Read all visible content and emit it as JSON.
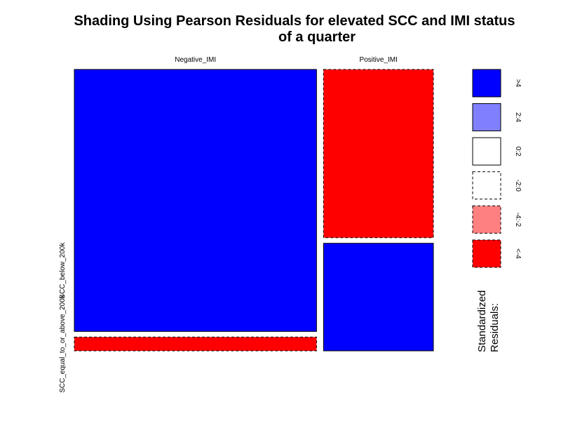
{
  "title": {
    "line1": "Shading Using Pearson Residuals for elevated SCC and IMI status",
    "line2": "of a quarter"
  },
  "chart_data": {
    "type": "mosaic",
    "title": "Shading Using Pearson Residuals for elevated SCC and IMI status of a quarter",
    "columns": [
      {
        "label": "Negative_IMI",
        "proportion": 0.688
      },
      {
        "label": "Positive_IMI",
        "proportion": 0.312
      }
    ],
    "rows": [
      "SCC_below_200k",
      "SCC_equal_to_or_above_200k"
    ],
    "cells": [
      {
        "column": "Negative_IMI",
        "row": "SCC_below_200k",
        "row_proportion": 0.95,
        "residual_bin": ">4",
        "fill": "#0000ff",
        "dashed": false
      },
      {
        "column": "Negative_IMI",
        "row": "SCC_equal_to_or_above_200k",
        "row_proportion": 0.05,
        "residual_bin": "<-4",
        "fill": "#ff0000",
        "dashed": true
      },
      {
        "column": "Positive_IMI",
        "row": "SCC_below_200k",
        "row_proportion": 0.61,
        "residual_bin": "<-4",
        "fill": "#ff0000",
        "dashed": true
      },
      {
        "column": "Positive_IMI",
        "row": "SCC_equal_to_or_above_200k",
        "row_proportion": 0.39,
        "residual_bin": ">4",
        "fill": "#0000ff",
        "dashed": false
      }
    ],
    "legend": {
      "title_line1": "Standardized",
      "title_line2": "Residuals:",
      "placement": "right",
      "items": [
        {
          "label": ">4",
          "fill": "#0000ff",
          "dashed": false
        },
        {
          "label": "2:4",
          "fill": "#8080ff",
          "dashed": false
        },
        {
          "label": "0:2",
          "fill": "#ffffff",
          "dashed": false
        },
        {
          "label": "-2:0",
          "fill": "#ffffff",
          "dashed": true
        },
        {
          "label": "-4:-2",
          "fill": "#ff8080",
          "dashed": true
        },
        {
          "label": "<-4",
          "fill": "#ff0000",
          "dashed": true
        }
      ]
    }
  }
}
